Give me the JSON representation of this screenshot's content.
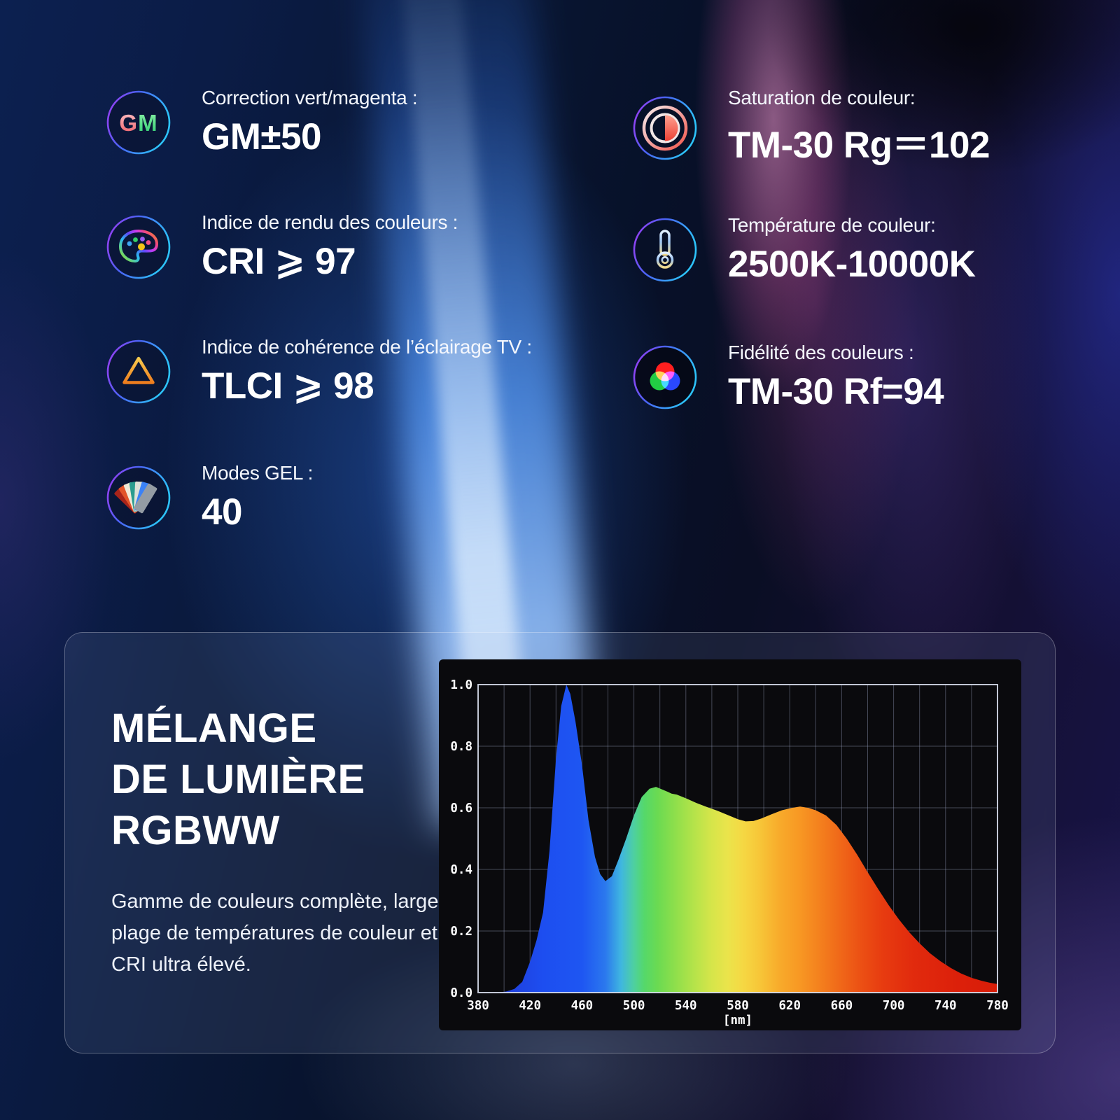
{
  "specs": {
    "left": [
      {
        "icon": "gm-correction-icon",
        "label": "Correction vert/magenta :",
        "value": "GM±50"
      },
      {
        "icon": "color-rendering-icon",
        "label": "Indice de rendu des couleurs :",
        "value": "CRI ⩾ 97"
      },
      {
        "icon": "tlci-icon",
        "label": "Indice de cohérence de l’éclairage TV :",
        "value": "TLCI ⩾ 98"
      },
      {
        "icon": "gel-modes-icon",
        "label": "Modes GEL :",
        "value": "40"
      }
    ],
    "right": [
      {
        "icon": "saturation-icon",
        "label": "Saturation de couleur:",
        "value": "TM-30 Rg＝102"
      },
      {
        "icon": "color-temperature-icon",
        "label": "Température de couleur:",
        "value": "2500K-10000K"
      },
      {
        "icon": "color-fidelity-icon",
        "label": "Fidélité des couleurs :",
        "value": "TM-30 Rf=94"
      }
    ]
  },
  "card": {
    "title_lines": [
      "MÉLANGE",
      "DE LUMIÈRE",
      "RGBWW"
    ],
    "description_lines": [
      "Gamme de couleurs complète, large",
      "plage de températures de couleur et",
      "CRI ultra élevé."
    ]
  },
  "chart_data": {
    "type": "area",
    "title": "",
    "xlabel": "[nm]",
    "ylabel": "",
    "xlim": [
      380,
      780
    ],
    "ylim": [
      0,
      1
    ],
    "x_ticks": [
      380,
      420,
      460,
      500,
      540,
      580,
      620,
      660,
      700,
      740,
      780
    ],
    "y_ticks": [
      0,
      0.2,
      0.4,
      0.6,
      0.8,
      1.0
    ],
    "x_grid_step": 20,
    "grid": true,
    "legend": "none",
    "points": [
      [
        380,
        0
      ],
      [
        396,
        0
      ],
      [
        402,
        0.004
      ],
      [
        408,
        0.012
      ],
      [
        414,
        0.035
      ],
      [
        420,
        0.1
      ],
      [
        425,
        0.17
      ],
      [
        430,
        0.26
      ],
      [
        435,
        0.46
      ],
      [
        440,
        0.76
      ],
      [
        444,
        0.93
      ],
      [
        448,
        1.0
      ],
      [
        451,
        0.97
      ],
      [
        455,
        0.88
      ],
      [
        460,
        0.74
      ],
      [
        465,
        0.56
      ],
      [
        470,
        0.44
      ],
      [
        474,
        0.385
      ],
      [
        478,
        0.362
      ],
      [
        483,
        0.378
      ],
      [
        488,
        0.43
      ],
      [
        494,
        0.5
      ],
      [
        500,
        0.575
      ],
      [
        506,
        0.635
      ],
      [
        512,
        0.662
      ],
      [
        517,
        0.668
      ],
      [
        522,
        0.659
      ],
      [
        526,
        0.652
      ],
      [
        529,
        0.646
      ],
      [
        533,
        0.643
      ],
      [
        540,
        0.631
      ],
      [
        548,
        0.616
      ],
      [
        556,
        0.603
      ],
      [
        564,
        0.591
      ],
      [
        572,
        0.577
      ],
      [
        580,
        0.563
      ],
      [
        586,
        0.556
      ],
      [
        592,
        0.557
      ],
      [
        598,
        0.565
      ],
      [
        606,
        0.579
      ],
      [
        614,
        0.592
      ],
      [
        622,
        0.6
      ],
      [
        628,
        0.604
      ],
      [
        634,
        0.6
      ],
      [
        640,
        0.592
      ],
      [
        648,
        0.575
      ],
      [
        656,
        0.544
      ],
      [
        664,
        0.499
      ],
      [
        672,
        0.447
      ],
      [
        680,
        0.391
      ],
      [
        688,
        0.337
      ],
      [
        696,
        0.285
      ],
      [
        704,
        0.238
      ],
      [
        712,
        0.196
      ],
      [
        720,
        0.16
      ],
      [
        728,
        0.128
      ],
      [
        736,
        0.102
      ],
      [
        744,
        0.08
      ],
      [
        752,
        0.062
      ],
      [
        760,
        0.048
      ],
      [
        768,
        0.038
      ],
      [
        774,
        0.032
      ],
      [
        780,
        0.028
      ]
    ],
    "gradient_stops": [
      [
        380,
        "#2233cc"
      ],
      [
        430,
        "#1d4ef0"
      ],
      [
        460,
        "#1e56f2"
      ],
      [
        478,
        "#2b78ee"
      ],
      [
        490,
        "#3fb6e0"
      ],
      [
        500,
        "#4ed0a0"
      ],
      [
        508,
        "#55d86a"
      ],
      [
        518,
        "#6ada52"
      ],
      [
        532,
        "#8fdf4b"
      ],
      [
        546,
        "#b4e34a"
      ],
      [
        560,
        "#d6e54a"
      ],
      [
        572,
        "#eae44b"
      ],
      [
        584,
        "#f5d843"
      ],
      [
        598,
        "#f7c437"
      ],
      [
        612,
        "#f8ab2b"
      ],
      [
        626,
        "#f89a24"
      ],
      [
        642,
        "#f4821e"
      ],
      [
        658,
        "#f06919"
      ],
      [
        674,
        "#ec5114"
      ],
      [
        692,
        "#e73b10"
      ],
      [
        716,
        "#e12a0d"
      ],
      [
        750,
        "#dc200a"
      ],
      [
        780,
        "#d81d08"
      ]
    ],
    "axis_text_color": "#ffffff",
    "plot_bg": "#0a0a0d",
    "grid_color": "#98a2c2"
  }
}
